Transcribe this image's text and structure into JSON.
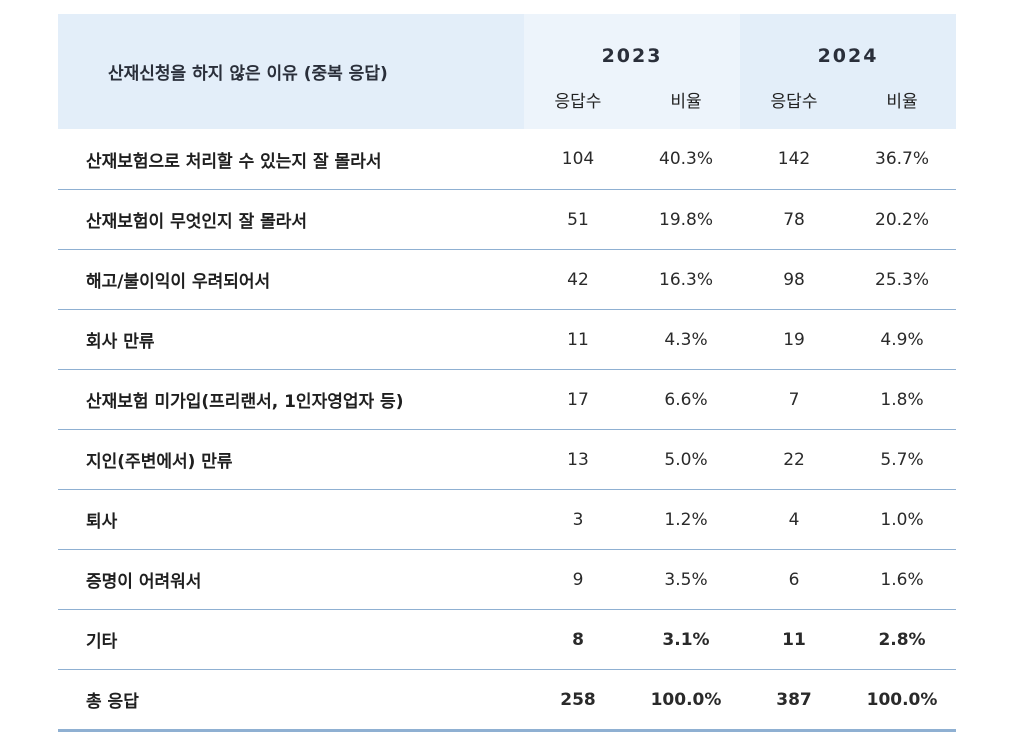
{
  "table": {
    "header": {
      "label": "산재신청을 하지 않은 이유 (중복 응답)",
      "years": [
        "2023",
        "2024"
      ],
      "sub": [
        "응답수",
        "비율",
        "응답수",
        "비율"
      ]
    },
    "rows": [
      {
        "label": "산재보험으로 처리할 수 있는지 잘 몰라서",
        "n2023": "104",
        "r2023": "40.3%",
        "n2024": "142",
        "r2024": "36.7%"
      },
      {
        "label": "산재보험이 무엇인지 잘 몰라서",
        "n2023": "51",
        "r2023": "19.8%",
        "n2024": "78",
        "r2024": "20.2%"
      },
      {
        "label": "해고/불이익이 우려되어서",
        "n2023": "42",
        "r2023": "16.3%",
        "n2024": "98",
        "r2024": "25.3%"
      },
      {
        "label": "회사 만류",
        "n2023": "11",
        "r2023": "4.3%",
        "n2024": "19",
        "r2024": "4.9%"
      },
      {
        "label": "산재보험 미가입(프리랜서, 1인자영업자 등)",
        "n2023": "17",
        "r2023": "6.6%",
        "n2024": "7",
        "r2024": "1.8%"
      },
      {
        "label": "지인(주변에서) 만류",
        "n2023": "13",
        "r2023": "5.0%",
        "n2024": "22",
        "r2024": "5.7%"
      },
      {
        "label": "퇴사",
        "n2023": "3",
        "r2023": "1.2%",
        "n2024": "4",
        "r2024": "1.0%"
      },
      {
        "label": "증명이 어려워서",
        "n2023": "9",
        "r2023": "3.5%",
        "n2024": "6",
        "r2024": "1.6%"
      },
      {
        "label": "기타",
        "n2023": "8",
        "r2023": "3.1%",
        "n2024": "11",
        "r2024": "2.8%"
      },
      {
        "label": "총 응답",
        "n2023": "258",
        "r2023": "100.0%",
        "n2024": "387",
        "r2024": "100.0%"
      }
    ]
  }
}
